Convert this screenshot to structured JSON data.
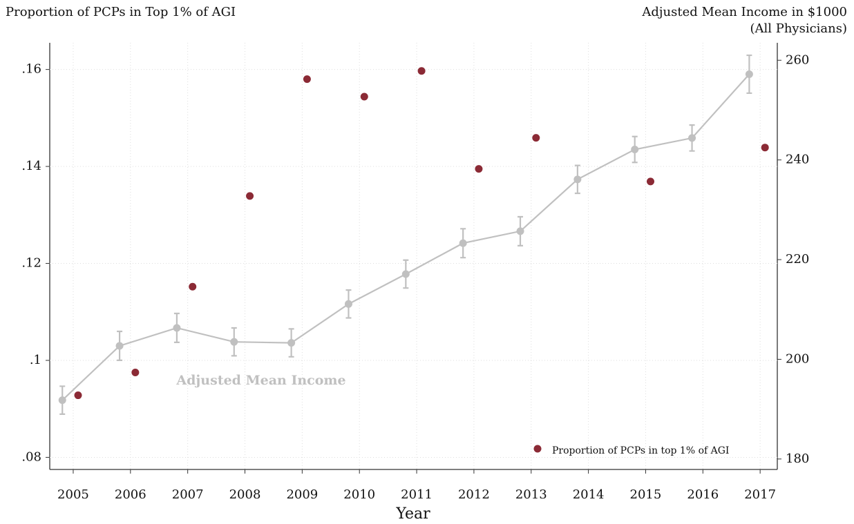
{
  "chart_data": {
    "type": "scatter",
    "ylabel": "Proportion of PCPs in Top 1% of AGI",
    "y2label": [
      "Adjusted Mean Income in $1000",
      "(All Physicians)"
    ],
    "xlabel": "Year",
    "x": [
      2005,
      2006,
      2007,
      2008,
      2009,
      2010,
      2011,
      2012,
      2013,
      2014,
      2015,
      2016,
      2017
    ],
    "xlim": [
      2004.59,
      2017.3
    ],
    "xticks": [
      2005,
      2006,
      2007,
      2008,
      2009,
      2010,
      2011,
      2012,
      2013,
      2014,
      2015,
      2016,
      2017
    ],
    "ylim": [
      0.0775,
      0.1655
    ],
    "yticks": [
      {
        "value": 0.08,
        "label": ".08"
      },
      {
        "value": 0.1,
        "label": ".1"
      },
      {
        "value": 0.12,
        "label": ".12"
      },
      {
        "value": 0.14,
        "label": ".14"
      },
      {
        "value": 0.16,
        "label": ".16"
      }
    ],
    "y2lim": [
      177.9,
      263.5
    ],
    "y2ticks": [
      180,
      200,
      220,
      240,
      260
    ],
    "grid": true,
    "legend": "lower right",
    "series": [
      {
        "name": "Proportion of PCPs in top 1% of AGI",
        "color": "#8b2a35",
        "values": [
          0.0928,
          0.0975,
          0.1152,
          0.1339,
          0.158,
          0.1544,
          0.1597,
          0.1395,
          0.1459,
          null,
          0.1369,
          null,
          0.1439
        ]
      },
      {
        "name": "Adjusted Mean Income",
        "color": "#c0c0c0",
        "axis": "y2",
        "values": [
          191.8,
          202.7,
          206.3,
          203.5,
          203.3,
          211.1,
          217.1,
          223.3,
          225.7,
          236.1,
          242.1,
          244.4,
          257.2
        ],
        "errors": [
          2.8,
          2.9,
          2.9,
          2.8,
          2.8,
          2.8,
          2.8,
          2.9,
          2.9,
          2.8,
          2.6,
          2.6,
          3.8
        ]
      }
    ]
  }
}
